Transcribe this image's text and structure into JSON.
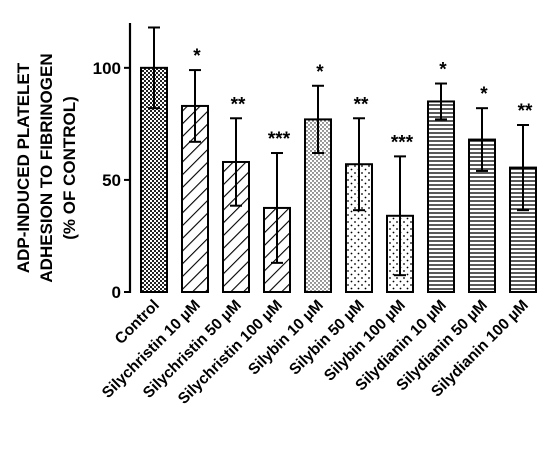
{
  "chart_data": {
    "type": "bar",
    "ylabel_lines": [
      "ADP-INDUCED PLATELET",
      "ADHESION TO FIBRINOGEN",
      "(% OF CONTROL)"
    ],
    "yticks": [
      0,
      50,
      100
    ],
    "ylim": [
      0,
      120
    ],
    "grid": false,
    "categories": [
      "Control",
      "Silychristin 10 µM",
      "Silychristin 50 µM",
      "Silychristin 100 µM",
      "Silybin 10 µM",
      "Silybin 50 µM",
      "Silybin 100 µM",
      "Silydianin 10 µM",
      "Silydianin 50 µM",
      "Silydianin 100 µM"
    ],
    "values": [
      100,
      83,
      58,
      37.5,
      77,
      57,
      34,
      85,
      68,
      55.5
    ],
    "errors": [
      18,
      16,
      19.5,
      24.5,
      15,
      20.5,
      26.5,
      8,
      14,
      19
    ],
    "significance": [
      "",
      "*",
      "**",
      "***",
      "*",
      "**",
      "***",
      "*",
      "*",
      "**"
    ],
    "patterns": [
      "checker",
      "diag-sparse",
      "diag-sparse",
      "diag-sparse",
      "dots-dense",
      "dots-sparse",
      "dots-sparse",
      "hstripes",
      "hstripes",
      "hstripes"
    ]
  }
}
